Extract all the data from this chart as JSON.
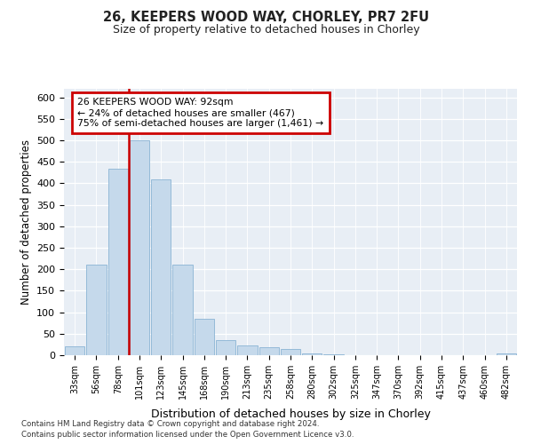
{
  "title_line1": "26, KEEPERS WOOD WAY, CHORLEY, PR7 2FU",
  "title_line2": "Size of property relative to detached houses in Chorley",
  "xlabel": "Distribution of detached houses by size in Chorley",
  "ylabel": "Number of detached properties",
  "bar_labels": [
    "33sqm",
    "56sqm",
    "78sqm",
    "101sqm",
    "123sqm",
    "145sqm",
    "168sqm",
    "190sqm",
    "213sqm",
    "235sqm",
    "258sqm",
    "280sqm",
    "302sqm",
    "325sqm",
    "347sqm",
    "370sqm",
    "392sqm",
    "415sqm",
    "437sqm",
    "460sqm",
    "482sqm"
  ],
  "bar_values": [
    20,
    210,
    435,
    500,
    410,
    210,
    85,
    35,
    22,
    18,
    15,
    5,
    2,
    0,
    0,
    0,
    0,
    0,
    0,
    0,
    5
  ],
  "bar_color": "#c5d9eb",
  "bar_edge_color": "#8ab4d4",
  "annotation_line1": "26 KEEPERS WOOD WAY: 92sqm",
  "annotation_line2": "← 24% of detached houses are smaller (467)",
  "annotation_line3": "75% of semi-detached houses are larger (1,461) →",
  "annotation_box_edge": "#cc0000",
  "vline_color": "#cc0000",
  "vline_x_idx": 3,
  "ylim": [
    0,
    620
  ],
  "yticks": [
    0,
    50,
    100,
    150,
    200,
    250,
    300,
    350,
    400,
    450,
    500,
    550,
    600
  ],
  "footnote1": "Contains HM Land Registry data © Crown copyright and database right 2024.",
  "footnote2": "Contains public sector information licensed under the Open Government Licence v3.0.",
  "plot_bg_color": "#e8eef5"
}
